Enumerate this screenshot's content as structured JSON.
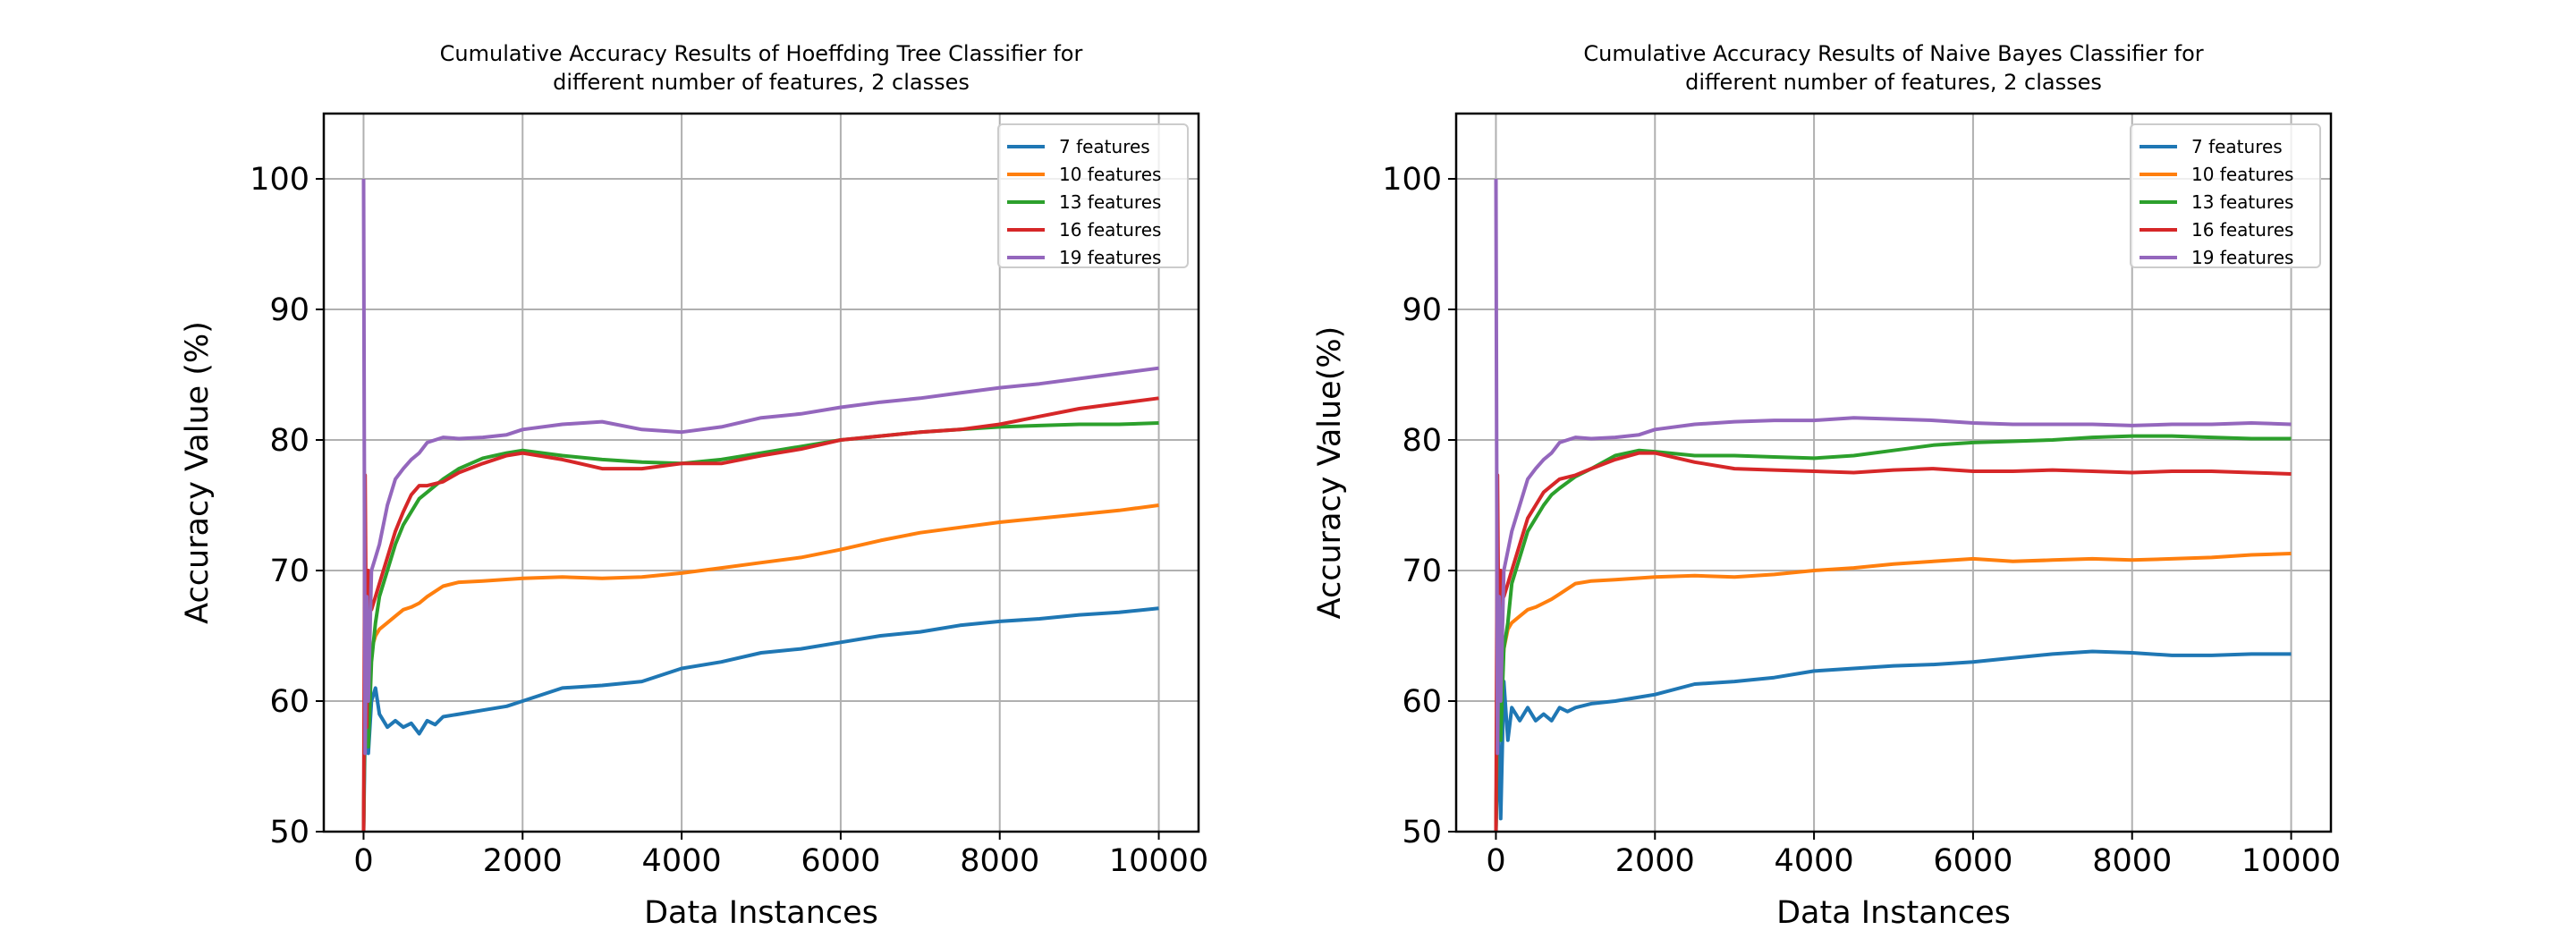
{
  "chart_data": [
    {
      "type": "line",
      "title": "Cumulative Accuracy Results of Hoeffding Tree Classifier for",
      "subtitle": "different number of features, 2 classes",
      "xlabel": "Data Instances",
      "ylabel": "Accuracy Value (%)",
      "xlim": [
        -500,
        10500
      ],
      "ylim": [
        50,
        105
      ],
      "xticks": [
        "0",
        "2000",
        "4000",
        "6000",
        "8000",
        "10000"
      ],
      "yticks": [
        "50",
        "60",
        "70",
        "80",
        "90",
        "100"
      ],
      "grid": true,
      "legend_position": "top-right",
      "series": [
        {
          "name": "7 features",
          "color": "#1f77b4",
          "x": [
            0,
            30,
            60,
            100,
            150,
            200,
            300,
            400,
            500,
            600,
            700,
            800,
            900,
            1000,
            1200,
            1500,
            1800,
            2000,
            2500,
            3000,
            3500,
            4000,
            4500,
            5000,
            5500,
            6000,
            6500,
            7000,
            7500,
            8000,
            8500,
            9000,
            9500,
            10000
          ],
          "y": [
            50,
            62,
            56,
            60,
            61,
            59,
            58,
            58.5,
            58,
            58.3,
            57.5,
            58.5,
            58.2,
            58.8,
            59,
            59.3,
            59.6,
            60,
            61,
            61.2,
            61.5,
            62.5,
            63,
            63.7,
            64,
            64.5,
            65,
            65.3,
            65.8,
            66.1,
            66.3,
            66.6,
            66.8,
            67.1
          ]
        },
        {
          "name": "10 features",
          "color": "#ff7f0e",
          "x": [
            0,
            30,
            60,
            100,
            150,
            200,
            300,
            400,
            500,
            600,
            700,
            800,
            1000,
            1200,
            1500,
            2000,
            2500,
            3000,
            3500,
            4000,
            4500,
            5000,
            5500,
            6000,
            6500,
            7000,
            7500,
            8000,
            8500,
            9000,
            9500,
            10000
          ],
          "y": [
            50,
            70,
            60,
            64,
            65,
            65.5,
            66,
            66.5,
            67,
            67.2,
            67.5,
            68,
            68.8,
            69.1,
            69.2,
            69.4,
            69.5,
            69.4,
            69.5,
            69.8,
            70.2,
            70.6,
            71,
            71.6,
            72.3,
            72.9,
            73.3,
            73.7,
            74,
            74.3,
            74.6,
            75
          ]
        },
        {
          "name": "13 features",
          "color": "#2ca02c",
          "x": [
            0,
            30,
            60,
            100,
            150,
            200,
            300,
            400,
            500,
            600,
            700,
            800,
            1000,
            1200,
            1500,
            1800,
            2000,
            2500,
            3000,
            3500,
            4000,
            4500,
            5000,
            5500,
            6000,
            6500,
            7000,
            7500,
            8000,
            8500,
            9000,
            9500,
            10000
          ],
          "y": [
            50,
            68,
            56.5,
            63,
            66,
            68,
            70,
            72,
            73.5,
            74.5,
            75.5,
            76,
            77,
            77.8,
            78.6,
            79,
            79.2,
            78.8,
            78.5,
            78.3,
            78.2,
            78.5,
            79,
            79.5,
            80,
            80.3,
            80.6,
            80.8,
            81,
            81.1,
            81.2,
            81.2,
            81.3
          ]
        },
        {
          "name": "16 features",
          "color": "#d62728",
          "x": [
            0,
            20,
            40,
            60,
            100,
            150,
            200,
            300,
            400,
            500,
            600,
            700,
            800,
            1000,
            1200,
            1500,
            1800,
            2000,
            2500,
            3000,
            3500,
            4000,
            4500,
            5000,
            5500,
            6000,
            6500,
            7000,
            7500,
            8000,
            8500,
            9000,
            9500,
            10000
          ],
          "y": [
            50,
            77.3,
            58,
            70,
            67,
            68,
            69,
            71,
            73,
            74.5,
            75.8,
            76.5,
            76.5,
            76.8,
            77.5,
            78.2,
            78.8,
            79,
            78.5,
            77.8,
            77.8,
            78.2,
            78.2,
            78.8,
            79.3,
            80,
            80.3,
            80.6,
            80.8,
            81.2,
            81.8,
            82.4,
            82.8,
            83.2
          ]
        },
        {
          "name": "19 features",
          "color": "#9467bd",
          "x": [
            0,
            20,
            40,
            60,
            100,
            150,
            200,
            300,
            400,
            500,
            600,
            700,
            800,
            1000,
            1200,
            1500,
            1800,
            2000,
            2500,
            3000,
            3500,
            4000,
            4500,
            5000,
            5500,
            6000,
            6500,
            7000,
            7500,
            8000,
            8500,
            9000,
            9500,
            10000
          ],
          "y": [
            100,
            56,
            68,
            60,
            70,
            71,
            72,
            75,
            77,
            77.8,
            78.5,
            79,
            79.8,
            80.2,
            80.1,
            80.2,
            80.4,
            80.8,
            81.2,
            81.4,
            80.8,
            80.6,
            81,
            81.7,
            82,
            82.5,
            82.9,
            83.2,
            83.6,
            84,
            84.3,
            84.7,
            85.1,
            85.5
          ]
        }
      ]
    },
    {
      "type": "line",
      "title": "Cumulative Accuracy Results of Naive Bayes Classifier for",
      "subtitle": "different number of features, 2 classes",
      "xlabel": "Data Instances",
      "ylabel": "Accuracy Value(%)",
      "xlim": [
        -500,
        10500
      ],
      "ylim": [
        50,
        105
      ],
      "xticks": [
        "0",
        "2000",
        "4000",
        "6000",
        "8000",
        "10000"
      ],
      "yticks": [
        "50",
        "60",
        "70",
        "80",
        "90",
        "100"
      ],
      "grid": true,
      "legend_position": "top-right",
      "series": [
        {
          "name": "7 features",
          "color": "#1f77b4",
          "x": [
            0,
            30,
            60,
            100,
            150,
            200,
            250,
            300,
            400,
            500,
            600,
            700,
            800,
            900,
            1000,
            1200,
            1500,
            1800,
            2000,
            2500,
            3000,
            3500,
            4000,
            4500,
            5000,
            5500,
            6000,
            6500,
            7000,
            7500,
            8000,
            8500,
            9000,
            9500,
            10000
          ],
          "y": [
            50,
            58,
            51,
            61.5,
            57,
            59.5,
            59,
            58.5,
            59.5,
            58.5,
            59,
            58.5,
            59.5,
            59.2,
            59.5,
            59.8,
            60,
            60.3,
            60.5,
            61.3,
            61.5,
            61.8,
            62.3,
            62.5,
            62.7,
            62.8,
            63,
            63.3,
            63.6,
            63.8,
            63.7,
            63.5,
            63.5,
            63.6,
            63.6
          ]
        },
        {
          "name": "10 features",
          "color": "#ff7f0e",
          "x": [
            0,
            30,
            60,
            100,
            150,
            200,
            300,
            400,
            500,
            600,
            700,
            800,
            1000,
            1200,
            1500,
            2000,
            2500,
            3000,
            3500,
            4000,
            4500,
            5000,
            5500,
            6000,
            6500,
            7000,
            7500,
            8000,
            8500,
            9000,
            9500,
            10000
          ],
          "y": [
            50,
            68,
            60,
            64,
            65.5,
            66,
            66.5,
            67,
            67.2,
            67.5,
            67.8,
            68.2,
            69,
            69.2,
            69.3,
            69.5,
            69.6,
            69.5,
            69.7,
            70,
            70.2,
            70.5,
            70.7,
            70.9,
            70.7,
            70.8,
            70.9,
            70.8,
            70.9,
            71,
            71.2,
            71.3
          ]
        },
        {
          "name": "13 features",
          "color": "#2ca02c",
          "x": [
            0,
            30,
            60,
            100,
            150,
            200,
            300,
            400,
            500,
            600,
            700,
            800,
            1000,
            1200,
            1500,
            1800,
            2000,
            2500,
            3000,
            3500,
            4000,
            4500,
            5000,
            5500,
            6000,
            6500,
            7000,
            7500,
            8000,
            8500,
            9000,
            9500,
            10000
          ],
          "y": [
            50,
            68,
            57,
            64,
            66,
            69,
            71,
            73,
            74,
            75,
            75.8,
            76.3,
            77.2,
            77.8,
            78.8,
            79.2,
            79.1,
            78.8,
            78.8,
            78.7,
            78.6,
            78.8,
            79.2,
            79.6,
            79.8,
            79.9,
            80,
            80.2,
            80.3,
            80.3,
            80.2,
            80.1,
            80.1
          ]
        },
        {
          "name": "16 features",
          "color": "#d62728",
          "x": [
            0,
            20,
            40,
            60,
            100,
            150,
            200,
            300,
            400,
            500,
            600,
            700,
            800,
            1000,
            1200,
            1500,
            1800,
            2000,
            2500,
            3000,
            3500,
            4000,
            4500,
            5000,
            5500,
            6000,
            6500,
            7000,
            7500,
            8000,
            8500,
            9000,
            9500,
            10000
          ],
          "y": [
            50,
            77.3,
            60,
            70,
            68,
            69,
            70,
            72,
            74,
            75,
            76,
            76.5,
            77,
            77.3,
            77.8,
            78.5,
            79,
            79,
            78.3,
            77.8,
            77.7,
            77.6,
            77.5,
            77.7,
            77.8,
            77.6,
            77.6,
            77.7,
            77.6,
            77.5,
            77.6,
            77.6,
            77.5,
            77.4
          ]
        },
        {
          "name": "19 features",
          "color": "#9467bd",
          "x": [
            0,
            20,
            40,
            60,
            100,
            150,
            200,
            300,
            400,
            500,
            600,
            700,
            800,
            1000,
            1200,
            1500,
            1800,
            2000,
            2500,
            3000,
            3500,
            4000,
            4500,
            5000,
            5500,
            6000,
            6500,
            7000,
            7500,
            8000,
            8500,
            9000,
            9500,
            10000
          ],
          "y": [
            100,
            56,
            68,
            60,
            70,
            71.5,
            73,
            75,
            77,
            77.8,
            78.5,
            79,
            79.8,
            80.2,
            80.1,
            80.2,
            80.4,
            80.8,
            81.2,
            81.4,
            81.5,
            81.5,
            81.7,
            81.6,
            81.5,
            81.3,
            81.2,
            81.2,
            81.2,
            81.1,
            81.2,
            81.2,
            81.3,
            81.2
          ]
        }
      ]
    }
  ]
}
